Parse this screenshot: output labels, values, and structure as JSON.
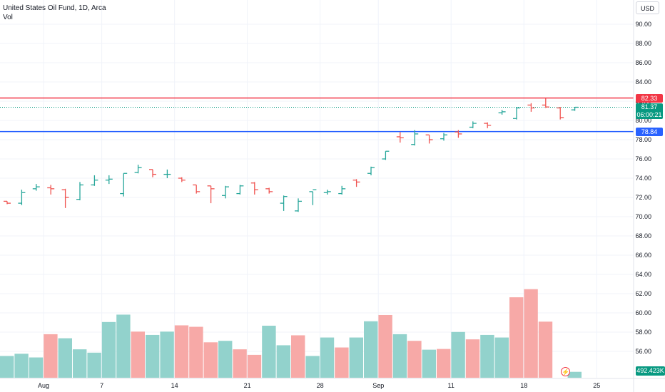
{
  "legend": {
    "symbol": "United States Oil Fund, 1D, Arca",
    "volume_label": "Vol"
  },
  "currency": "USD",
  "colors": {
    "up": "#26a69a",
    "down": "#ef5350",
    "vol_up": "#92d2cc",
    "vol_down": "#f7a9a7",
    "resistance": "#f23645",
    "support": "#2962ff",
    "last": "#089981",
    "grid": "#f0f3fa",
    "axis_text": "#131722"
  },
  "price_labels": {
    "resistance": "82.33",
    "last_price": "81.37",
    "countdown": "06:00:21",
    "support": "78.84",
    "volume_last": "492.423K"
  },
  "chart_data": {
    "type": "ohlc_bar_with_volume",
    "price_axis": {
      "ticks": [
        "90.00",
        "88.00",
        "86.00",
        "84.00",
        "82.00",
        "80.00",
        "78.00",
        "76.00",
        "74.00",
        "72.00",
        "70.00",
        "68.00",
        "66.00",
        "64.00",
        "62.00",
        "60.00",
        "58.00",
        "56.00"
      ],
      "range": [
        54.6,
        91.9
      ]
    },
    "time_axis": {
      "ticks": [
        {
          "label": "Aug",
          "bar": 2.5
        },
        {
          "label": "7",
          "bar": 6.5
        },
        {
          "label": "14",
          "bar": 11.5
        },
        {
          "label": "21",
          "bar": 16.5
        },
        {
          "label": "28",
          "bar": 21.5
        },
        {
          "label": "Sep",
          "bar": 25.5
        },
        {
          "label": "11",
          "bar": 30.5
        },
        {
          "label": "18",
          "bar": 35.5
        },
        {
          "label": "25",
          "bar": 40.5
        }
      ]
    },
    "horizontal_lines": [
      {
        "name": "resistance",
        "price": 82.33
      },
      {
        "name": "support",
        "price": 78.84
      }
    ],
    "last_price": 81.37,
    "bars": [
      {
        "o": 71.6,
        "h": 71.6,
        "l": 71.3,
        "c": 71.4
      },
      {
        "o": 71.4,
        "h": 72.8,
        "l": 71.2,
        "c": 72.5
      },
      {
        "o": 72.9,
        "h": 73.4,
        "l": 72.7,
        "c": 73.1
      },
      {
        "o": 73.0,
        "h": 73.3,
        "l": 72.3,
        "c": 72.9
      },
      {
        "o": 72.8,
        "h": 72.9,
        "l": 70.9,
        "c": 72.0
      },
      {
        "o": 71.8,
        "h": 73.6,
        "l": 71.7,
        "c": 73.3
      },
      {
        "o": 73.3,
        "h": 74.3,
        "l": 73.2,
        "c": 73.8
      },
      {
        "o": 73.8,
        "h": 74.3,
        "l": 73.4,
        "c": 73.9
      },
      {
        "o": 72.4,
        "h": 74.5,
        "l": 72.1,
        "c": 74.5
      },
      {
        "o": 74.6,
        "h": 75.4,
        "l": 74.5,
        "c": 75.1
      },
      {
        "o": 74.9,
        "h": 74.9,
        "l": 74.1,
        "c": 74.4
      },
      {
        "o": 74.4,
        "h": 74.9,
        "l": 74.0,
        "c": 74.4
      },
      {
        "o": 74.0,
        "h": 74.1,
        "l": 73.6,
        "c": 73.8
      },
      {
        "o": 73.3,
        "h": 73.3,
        "l": 72.4,
        "c": 72.6
      },
      {
        "o": 73.2,
        "h": 73.2,
        "l": 71.4,
        "c": 72.9
      },
      {
        "o": 72.2,
        "h": 73.2,
        "l": 71.9,
        "c": 73.1
      },
      {
        "o": 72.4,
        "h": 73.3,
        "l": 72.3,
        "c": 73.2
      },
      {
        "o": 73.5,
        "h": 73.6,
        "l": 72.3,
        "c": 72.8
      },
      {
        "o": 72.9,
        "h": 73.0,
        "l": 72.4,
        "c": 72.6
      },
      {
        "o": 71.4,
        "h": 72.2,
        "l": 70.6,
        "c": 72.1
      },
      {
        "o": 70.6,
        "h": 71.9,
        "l": 70.5,
        "c": 71.6
      },
      {
        "o": 72.6,
        "h": 72.6,
        "l": 71.2,
        "c": 72.8
      },
      {
        "o": 72.5,
        "h": 72.8,
        "l": 72.3,
        "c": 72.6
      },
      {
        "o": 72.4,
        "h": 73.2,
        "l": 72.3,
        "c": 72.9
      },
      {
        "o": 73.8,
        "h": 73.9,
        "l": 73.1,
        "c": 73.6
      },
      {
        "o": 74.5,
        "h": 75.2,
        "l": 74.3,
        "c": 75.1
      },
      {
        "o": 76.0,
        "h": 76.8,
        "l": 75.9,
        "c": 76.8
      },
      {
        "o": 78.3,
        "h": 78.8,
        "l": 77.7,
        "c": 78.2
      },
      {
        "o": 77.5,
        "h": 79.0,
        "l": 77.4,
        "c": 78.6
      },
      {
        "o": 78.5,
        "h": 78.5,
        "l": 77.6,
        "c": 78.0
      },
      {
        "o": 78.1,
        "h": 78.7,
        "l": 77.9,
        "c": 78.5
      },
      {
        "o": 78.8,
        "h": 79.0,
        "l": 78.2,
        "c": 78.6
      },
      {
        "o": 79.3,
        "h": 79.9,
        "l": 79.2,
        "c": 79.7
      },
      {
        "o": 79.7,
        "h": 79.8,
        "l": 79.2,
        "c": 79.5
      },
      {
        "o": 80.8,
        "h": 81.1,
        "l": 80.6,
        "c": 80.9
      },
      {
        "o": 80.2,
        "h": 81.4,
        "l": 80.1,
        "c": 81.3
      },
      {
        "o": 81.6,
        "h": 81.8,
        "l": 80.9,
        "c": 81.3
      },
      {
        "o": 81.6,
        "h": 82.3,
        "l": 81.3,
        "c": 81.4
      },
      {
        "o": 81.3,
        "h": 81.4,
        "l": 80.1,
        "c": 80.3
      },
      {
        "o": 81.1,
        "h": 81.4,
        "l": 81.0,
        "c": 81.37
      }
    ],
    "volume": [
      {
        "v": 5.9,
        "dir": "up"
      },
      {
        "v": 6.5,
        "dir": "up"
      },
      {
        "v": 5.5,
        "dir": "up"
      },
      {
        "v": 11.8,
        "dir": "down"
      },
      {
        "v": 10.7,
        "dir": "up"
      },
      {
        "v": 7.7,
        "dir": "up"
      },
      {
        "v": 6.8,
        "dir": "up"
      },
      {
        "v": 15.1,
        "dir": "up"
      },
      {
        "v": 17.1,
        "dir": "up"
      },
      {
        "v": 12.5,
        "dir": "down"
      },
      {
        "v": 11.6,
        "dir": "up"
      },
      {
        "v": 12.5,
        "dir": "up"
      },
      {
        "v": 14.2,
        "dir": "down"
      },
      {
        "v": 13.8,
        "dir": "down"
      },
      {
        "v": 9.6,
        "dir": "down"
      },
      {
        "v": 10.0,
        "dir": "up"
      },
      {
        "v": 7.7,
        "dir": "down"
      },
      {
        "v": 6.2,
        "dir": "down"
      },
      {
        "v": 14.1,
        "dir": "up"
      },
      {
        "v": 8.8,
        "dir": "up"
      },
      {
        "v": 11.5,
        "dir": "down"
      },
      {
        "v": 5.9,
        "dir": "up"
      },
      {
        "v": 10.9,
        "dir": "up"
      },
      {
        "v": 8.2,
        "dir": "down"
      },
      {
        "v": 10.9,
        "dir": "up"
      },
      {
        "v": 15.3,
        "dir": "up"
      },
      {
        "v": 17.0,
        "dir": "down"
      },
      {
        "v": 11.8,
        "dir": "up"
      },
      {
        "v": 10.0,
        "dir": "down"
      },
      {
        "v": 7.6,
        "dir": "up"
      },
      {
        "v": 7.8,
        "dir": "down"
      },
      {
        "v": 12.4,
        "dir": "up"
      },
      {
        "v": 10.4,
        "dir": "down"
      },
      {
        "v": 11.6,
        "dir": "up"
      },
      {
        "v": 10.9,
        "dir": "up"
      },
      {
        "v": 21.8,
        "dir": "down"
      },
      {
        "v": 24.0,
        "dir": "down"
      },
      {
        "v": 15.2,
        "dir": "down"
      },
      {
        "v": 0,
        "dir": "up"
      },
      {
        "v": 1.6,
        "dir": "up"
      }
    ],
    "volume_max": 28.0
  }
}
